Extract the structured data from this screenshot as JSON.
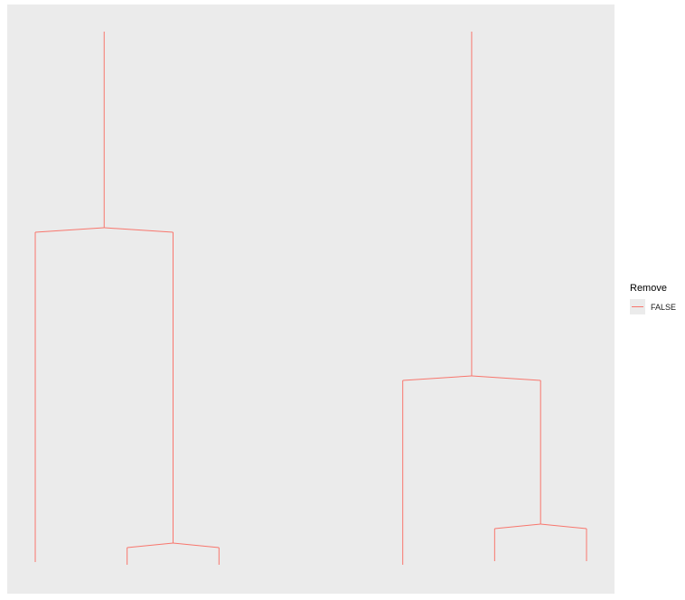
{
  "chart_data": {
    "type": "dendrogram",
    "edge_color": "#F8766D",
    "panel_background": "#ebebeb",
    "grid": false,
    "legend": {
      "title": "Remove",
      "entries": [
        "FALSE"
      ],
      "placement": "right"
    },
    "trees": [
      {
        "height": 5.9,
        "children": [
          {
            "height": 3.73,
            "children": [
              {
                "leaf": 0,
                "height": 0.03
              },
              {
                "height": 0.24,
                "children": [
                  {
                    "leaf": 1,
                    "height": 0
                  },
                  {
                    "leaf": 2,
                    "height": 0
                  }
                ]
              }
            ]
          }
        ]
      },
      {
        "height": 5.9,
        "children": [
          {
            "height": 2.09,
            "children": [
              {
                "leaf": 4,
                "height": 0
              },
              {
                "height": 0.45,
                "children": [
                  {
                    "leaf": 5,
                    "height": 0.04
                  },
                  {
                    "leaf": 6,
                    "height": 0.04
                  }
                ]
              }
            ]
          }
        ]
      }
    ]
  }
}
